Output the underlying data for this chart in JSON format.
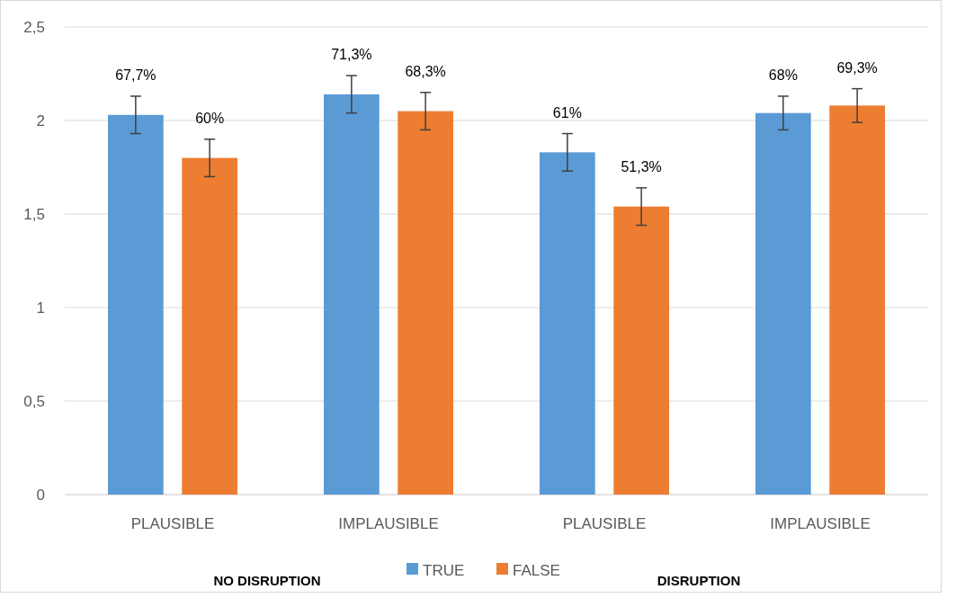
{
  "chart_data": {
    "type": "bar",
    "categories": [
      "PLAUSIBLE",
      "IMPLAUSIBLE",
      "PLAUSIBLE",
      "IMPLAUSIBLE"
    ],
    "series": [
      {
        "name": "TRUE",
        "color": "#5b9bd5",
        "values": [
          2.03,
          2.14,
          1.83,
          2.04
        ],
        "errors": [
          0.1,
          0.1,
          0.1,
          0.09
        ]
      },
      {
        "name": "FALSE",
        "color": "#ed7d31",
        "values": [
          1.8,
          2.05,
          1.54,
          2.08
        ],
        "errors": [
          0.1,
          0.1,
          0.1,
          0.09
        ]
      }
    ],
    "ylim": [
      0,
      2.5
    ],
    "yticks": [
      {
        "value": 0,
        "label": "0"
      },
      {
        "value": 0.5,
        "label": "0,5"
      },
      {
        "value": 1,
        "label": "1"
      },
      {
        "value": 1.5,
        "label": "1,5"
      },
      {
        "value": 2,
        "label": "2"
      },
      {
        "value": 2.5,
        "label": "2,5"
      }
    ],
    "grid": "y",
    "legend": "bottom",
    "annotations": [
      "67,7%",
      "60%",
      "71,3%",
      "68,3%",
      "61%",
      "51,3%",
      "68%",
      "69,3%",
      "NO DISRUPTION",
      "DISRUPTION"
    ]
  }
}
